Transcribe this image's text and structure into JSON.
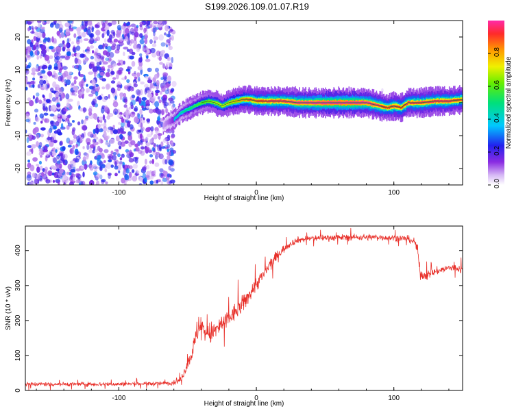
{
  "title": "S199.2026.109.01.07.R19",
  "chart_data": [
    {
      "type": "heatmap",
      "xlabel": "Height of straight line (km)",
      "ylabel": "Frequency (Hz)",
      "xlim": [
        -168,
        150
      ],
      "ylim": [
        -25,
        25
      ],
      "x_ticks": [
        -100,
        0,
        100
      ],
      "y_ticks": [
        -20,
        -10,
        0,
        10,
        20
      ],
      "colorbar": {
        "label": "Normalized spectral amplitude",
        "range": [
          0,
          1
        ],
        "ticks": [
          0.0,
          0.2,
          0.4,
          0.6,
          0.8
        ],
        "tick_labels": [
          "0.0",
          "0.2",
          "0.4",
          "0.6",
          "0.8"
        ]
      },
      "noise_region": {
        "x_from": -168,
        "x_to": -60
      },
      "ridge": {
        "x": [
          -68,
          -65,
          -60,
          -55,
          -50,
          -45,
          -40,
          -35,
          -30,
          -25,
          -20,
          -15,
          -10,
          -5,
          0,
          10,
          20,
          30,
          40,
          50,
          60,
          70,
          80,
          90,
          95,
          100,
          105,
          110,
          120,
          130,
          140,
          150
        ],
        "freq": [
          -7,
          -6,
          -5,
          -3,
          -2,
          -1,
          0,
          0.5,
          0,
          -1,
          0,
          0.5,
          1,
          1,
          0.5,
          0.5,
          0.5,
          0,
          0,
          0,
          0,
          0,
          0,
          -1,
          -1.5,
          -1,
          -1.5,
          0,
          0,
          0.5,
          0.5,
          1
        ],
        "amplitude": [
          0.15,
          0.2,
          0.3,
          0.35,
          0.4,
          0.45,
          0.5,
          0.55,
          0.6,
          0.6,
          0.65,
          0.7,
          0.75,
          0.8,
          0.8,
          0.85,
          0.85,
          0.9,
          0.9,
          0.95,
          0.95,
          0.95,
          0.9,
          0.85,
          0.8,
          0.85,
          0.8,
          0.85,
          0.85,
          0.85,
          0.85,
          0.8
        ]
      }
    },
    {
      "type": "line",
      "xlabel": "Height of straight line (km)",
      "ylabel": "SNR (10 * v/v)",
      "xlim": [
        -168,
        150
      ],
      "ylim": [
        0,
        470
      ],
      "x_ticks": [
        -100,
        0,
        100
      ],
      "y_ticks": [
        0,
        100,
        200,
        300,
        400
      ],
      "series": [
        {
          "name": "SNR",
          "color": "#e8302a",
          "x": [
            -168,
            -130,
            -100,
            -70,
            -60,
            -55,
            -50,
            -45,
            -42,
            -40,
            -35,
            -30,
            -25,
            -20,
            -15,
            -10,
            -5,
            0,
            5,
            10,
            15,
            20,
            25,
            30,
            40,
            50,
            60,
            70,
            80,
            90,
            100,
            110,
            115,
            117,
            118,
            119,
            120,
            125,
            130,
            135,
            140,
            145,
            150
          ],
          "values": [
            18,
            18,
            18,
            20,
            22,
            30,
            75,
            130,
            190,
            180,
            160,
            170,
            190,
            205,
            225,
            245,
            275,
            305,
            330,
            360,
            385,
            405,
            420,
            430,
            435,
            437,
            437,
            438,
            438,
            438,
            436,
            434,
            425,
            405,
            375,
            340,
            330,
            330,
            340,
            345,
            350,
            350,
            345
          ],
          "noise": [
            8,
            8,
            8,
            8,
            8,
            10,
            20,
            40,
            55,
            50,
            45,
            40,
            40,
            35,
            35,
            35,
            30,
            30,
            25,
            25,
            20,
            15,
            12,
            12,
            12,
            12,
            12,
            12,
            12,
            12,
            12,
            12,
            15,
            20,
            25,
            25,
            18,
            18,
            15,
            15,
            15,
            15,
            15
          ]
        }
      ]
    }
  ]
}
